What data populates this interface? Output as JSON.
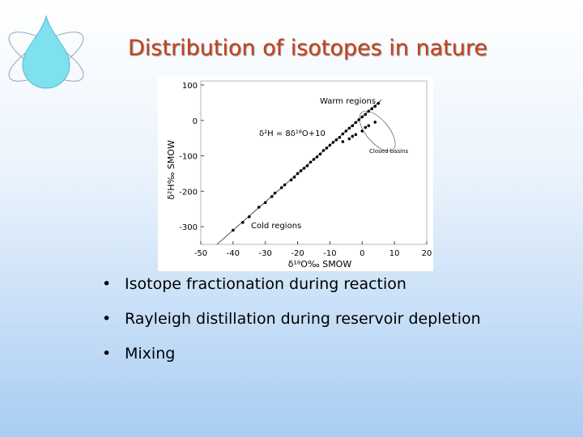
{
  "title": "Distribution of isotopes in nature",
  "chart_data": {
    "type": "scatter",
    "xlabel": "δ¹⁸O‰  SMOW",
    "ylabel": "δ²H‰ SMOW",
    "annotations": [
      "Warm regions",
      "δ²H = 8δ¹⁸O+10",
      "Closed basins",
      "Cold regions"
    ],
    "xlim": [
      -50,
      20
    ],
    "xticks": [
      -50,
      -40,
      -30,
      -20,
      -10,
      0,
      10,
      20
    ],
    "ylim": [
      -350,
      100
    ],
    "yticks": [
      -300,
      -200,
      -100,
      0,
      100
    ],
    "series": [
      {
        "color": "#000000",
        "x": [
          -40,
          -37,
          -35,
          -32,
          -30,
          -28,
          -27,
          -25,
          -24,
          -22,
          -21,
          -20,
          -19,
          -18,
          -17,
          -16,
          -15,
          -14,
          -13,
          -12,
          -11,
          -10,
          -9,
          -8,
          -7,
          -6,
          -5,
          -4,
          -3,
          -2,
          -1,
          0,
          1,
          2,
          3,
          4,
          5,
          -6,
          -4,
          -2,
          0,
          2,
          4,
          -3,
          1
        ],
        "values": [
          -310,
          -288,
          -272,
          -245,
          -232,
          -215,
          -205,
          -190,
          -182,
          -168,
          -160,
          -150,
          -142,
          -135,
          -128,
          -118,
          -110,
          -103,
          -95,
          -85,
          -78,
          -70,
          -62,
          -55,
          -48,
          -38,
          -30,
          -22,
          -15,
          -6,
          2,
          10,
          17,
          26,
          33,
          40,
          48,
          -60,
          -52,
          -40,
          -30,
          -15,
          -5,
          -45,
          -20
        ]
      }
    ],
    "line": {
      "x": [
        -45,
        6
      ],
      "values": [
        -350,
        58
      ]
    }
  },
  "bullets": [
    "Isotope fractionation during reaction",
    "Rayleigh distillation during reservoir depletion",
    "Mixing"
  ]
}
